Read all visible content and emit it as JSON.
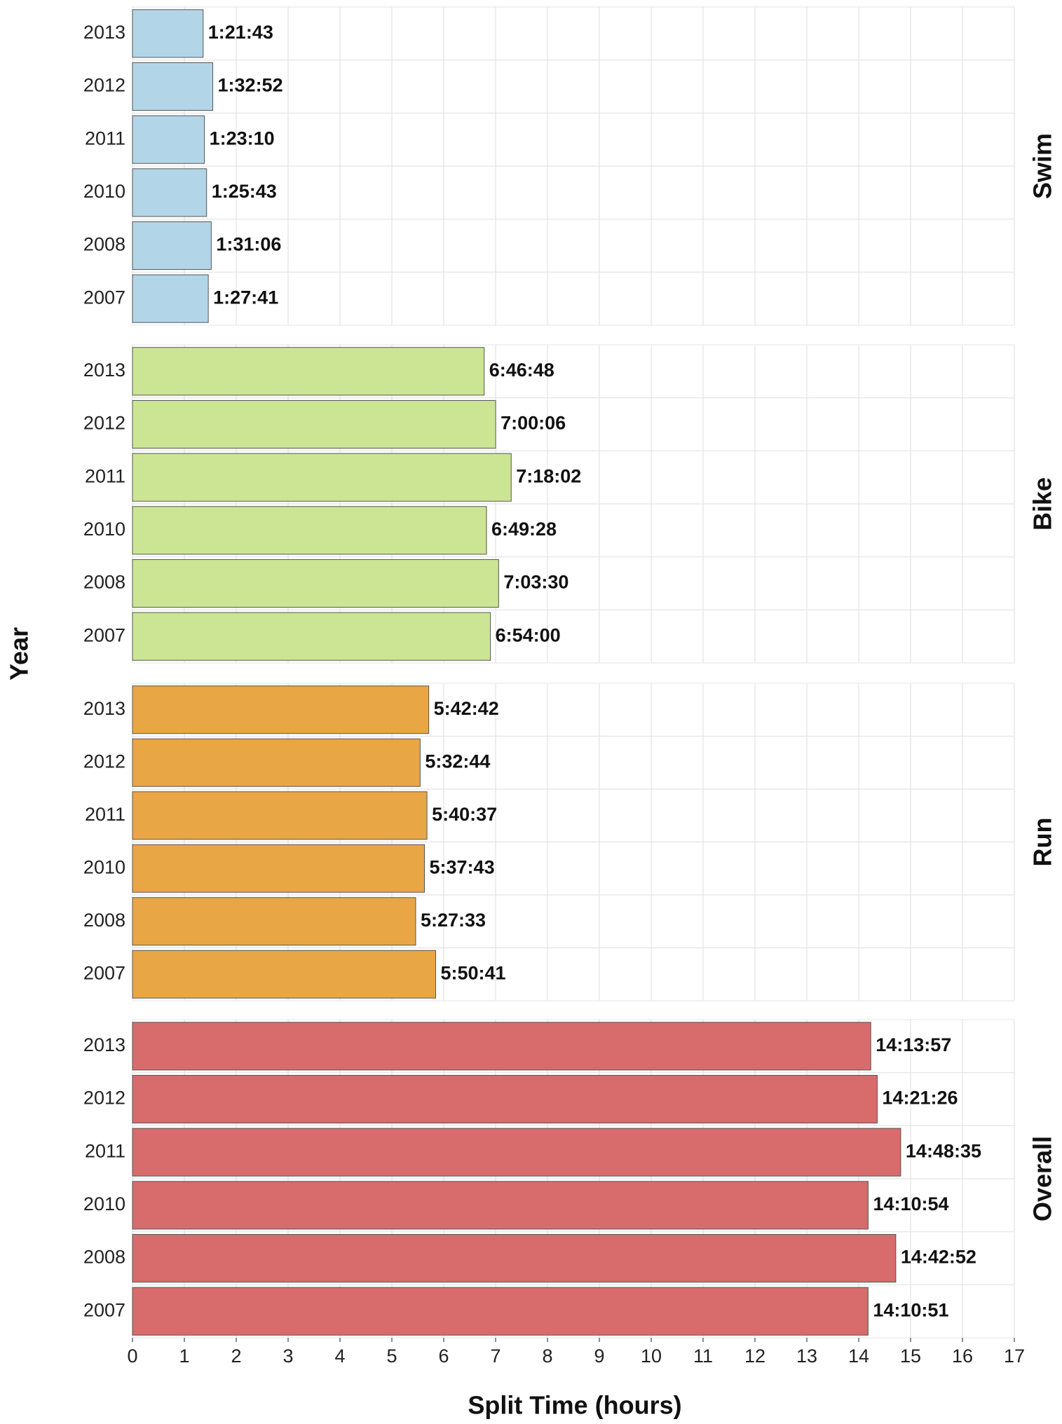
{
  "chart_data": {
    "type": "bar",
    "x_label": "Split Time (hours)",
    "y_label": "Year",
    "categories": [
      "2013",
      "2012",
      "2011",
      "2010",
      "2008",
      "2007"
    ],
    "xlim": [
      0,
      17
    ],
    "xticks": [
      0,
      1,
      2,
      3,
      4,
      5,
      6,
      7,
      8,
      9,
      10,
      11,
      12,
      13,
      14,
      15,
      16,
      17
    ],
    "grid": true,
    "facets": [
      {
        "title": "Swim",
        "color": "#b3d5e8",
        "values": [
          1.36194,
          1.54778,
          1.38611,
          1.42861,
          1.51833,
          1.46139
        ],
        "value_labels": [
          "1:21:43",
          "1:32:52",
          "1:23:10",
          "1:25:43",
          "1:31:06",
          "1:27:41"
        ]
      },
      {
        "title": "Bike",
        "color": "#cbe595",
        "values": [
          6.78,
          7.00167,
          7.30056,
          6.82444,
          7.05833,
          6.9
        ],
        "value_labels": [
          "6:46:48",
          "7:00:06",
          "7:18:02",
          "6:49:28",
          "7:03:30",
          "6:54:00"
        ]
      },
      {
        "title": "Run",
        "color": "#e9a645",
        "values": [
          5.71167,
          5.54556,
          5.67694,
          5.62861,
          5.45917,
          5.84472
        ],
        "value_labels": [
          "5:42:42",
          "5:32:44",
          "5:40:37",
          "5:37:43",
          "5:27:33",
          "5:50:41"
        ]
      },
      {
        "title": "Overall",
        "color": "#d86b6b",
        "values": [
          14.2325,
          14.35722,
          14.80972,
          14.18167,
          14.71444,
          14.18083
        ],
        "value_labels": [
          "14:13:57",
          "14:21:26",
          "14:48:35",
          "14:10:54",
          "14:42:52",
          "14:10:51"
        ]
      }
    ]
  }
}
